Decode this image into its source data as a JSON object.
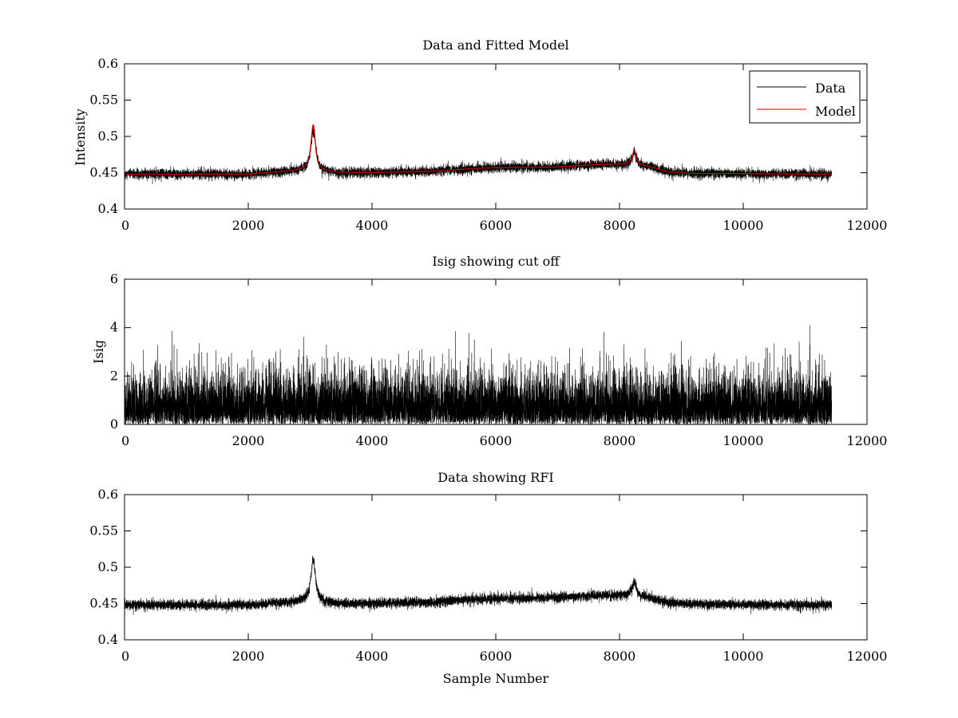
{
  "chart_data": [
    {
      "type": "line",
      "title": "Data and Fitted Model",
      "xlabel": "",
      "ylabel": "Intensity",
      "xlim": [
        0,
        12000
      ],
      "ylim": [
        0.4,
        0.6
      ],
      "xticks": [
        0,
        2000,
        4000,
        6000,
        8000,
        10000,
        12000
      ],
      "xtick_labels": [
        "0",
        "2000",
        "4000",
        "6000",
        "8000",
        "10000",
        "12000"
      ],
      "yticks": [
        0.4,
        0.45,
        0.5,
        0.55,
        0.6
      ],
      "ytick_labels": [
        "0.4",
        "0.45",
        "0.5",
        "0.55",
        "0.6"
      ],
      "legend": {
        "position": "top-right",
        "entries": [
          "Data",
          "Model"
        ]
      },
      "series": [
        {
          "name": "Data",
          "color": "#000000",
          "n_points": 11430,
          "noise_sigma": 0.0035,
          "baseline": [
            [
              0,
              0.448
            ],
            [
              2000,
              0.448
            ],
            [
              2500,
              0.451
            ],
            [
              2850,
              0.453
            ],
            [
              3500,
              0.45
            ],
            [
              4000,
              0.45
            ],
            [
              5000,
              0.452
            ],
            [
              5500,
              0.455
            ],
            [
              6000,
              0.457
            ],
            [
              7000,
              0.458
            ],
            [
              7600,
              0.461
            ],
            [
              8200,
              0.462
            ],
            [
              8500,
              0.458
            ],
            [
              8800,
              0.451
            ],
            [
              9200,
              0.449
            ],
            [
              11430,
              0.448
            ]
          ],
          "peaks": [
            {
              "x": 3050,
              "amplitude": 0.058,
              "width": 45
            },
            {
              "x": 8240,
              "amplitude": 0.018,
              "width": 35
            }
          ]
        },
        {
          "name": "Model",
          "color": "#cc0000",
          "n_points": 11430,
          "noise_sigma": 0,
          "baseline": [
            [
              0,
              0.448
            ],
            [
              2000,
              0.448
            ],
            [
              2500,
              0.451
            ],
            [
              2850,
              0.453
            ],
            [
              3500,
              0.45
            ],
            [
              4000,
              0.45
            ],
            [
              5000,
              0.452
            ],
            [
              5500,
              0.455
            ],
            [
              6000,
              0.457
            ],
            [
              7000,
              0.458
            ],
            [
              7600,
              0.461
            ],
            [
              8200,
              0.462
            ],
            [
              8500,
              0.458
            ],
            [
              8800,
              0.451
            ],
            [
              9200,
              0.449
            ],
            [
              11430,
              0.448
            ]
          ],
          "peaks": [
            {
              "x": 3050,
              "amplitude": 0.064,
              "width": 45
            },
            {
              "x": 8240,
              "amplitude": 0.02,
              "width": 35
            }
          ]
        }
      ]
    },
    {
      "type": "line",
      "title": "Isig showing cut off",
      "xlabel": "",
      "ylabel": "Isig",
      "xlim": [
        0,
        12000
      ],
      "ylim": [
        0,
        6
      ],
      "xticks": [
        0,
        2000,
        4000,
        6000,
        8000,
        10000,
        12000
      ],
      "xtick_labels": [
        "0",
        "2000",
        "4000",
        "6000",
        "8000",
        "10000",
        "12000"
      ],
      "yticks": [
        0,
        2,
        4,
        6
      ],
      "ytick_labels": [
        "0",
        "2",
        "4",
        "6"
      ],
      "series": [
        {
          "name": "Isig",
          "color": "#000000",
          "n_points": 11430,
          "distribution": "abs_normal",
          "mean_abs": 0.8,
          "max_value": 4.1,
          "notable_spikes": [
            [
              5350,
              3.85
            ],
            [
              11080,
              4.1
            ],
            [
              9000,
              3.45
            ],
            [
              10500,
              3.35
            ],
            [
              800,
              3.3
            ]
          ]
        }
      ]
    },
    {
      "type": "line",
      "title": "Data showing RFI",
      "xlabel": "Sample Number",
      "ylabel": "",
      "xlim": [
        0,
        12000
      ],
      "ylim": [
        0.4,
        0.6
      ],
      "xticks": [
        0,
        2000,
        4000,
        6000,
        8000,
        10000,
        12000
      ],
      "xtick_labels": [
        "0",
        "2000",
        "4000",
        "6000",
        "8000",
        "10000",
        "12000"
      ],
      "yticks": [
        0.4,
        0.45,
        0.5,
        0.55,
        0.6
      ],
      "ytick_labels": [
        "0.4",
        "0.45",
        "0.5",
        "0.55",
        "0.6"
      ],
      "series": [
        {
          "name": "Data",
          "color": "#000000",
          "n_points": 11430,
          "noise_sigma": 0.0035,
          "baseline": [
            [
              0,
              0.448
            ],
            [
              2000,
              0.448
            ],
            [
              2500,
              0.451
            ],
            [
              2850,
              0.453
            ],
            [
              3500,
              0.45
            ],
            [
              4000,
              0.45
            ],
            [
              5000,
              0.452
            ],
            [
              5500,
              0.455
            ],
            [
              6000,
              0.457
            ],
            [
              7000,
              0.458
            ],
            [
              7600,
              0.461
            ],
            [
              8200,
              0.462
            ],
            [
              8500,
              0.458
            ],
            [
              8800,
              0.451
            ],
            [
              9200,
              0.449
            ],
            [
              11430,
              0.448
            ]
          ],
          "peaks": [
            {
              "x": 3050,
              "amplitude": 0.058,
              "width": 45
            },
            {
              "x": 8240,
              "amplitude": 0.018,
              "width": 35
            }
          ]
        }
      ]
    }
  ]
}
